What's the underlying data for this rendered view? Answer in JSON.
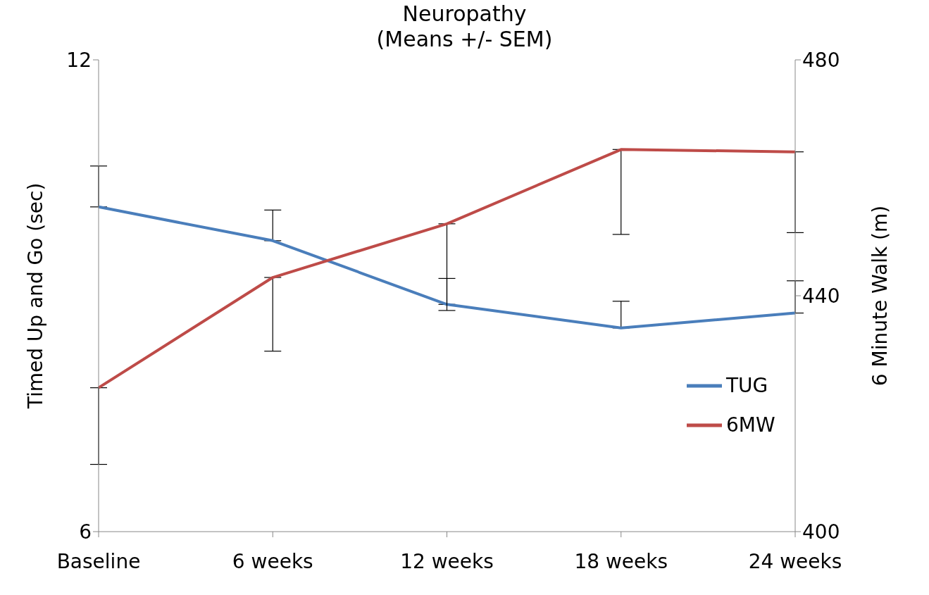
{
  "chart_data": {
    "type": "line",
    "title": "Neuropathy",
    "subtitle": "(Means +/- SEM)",
    "categories": [
      "Baseline",
      "6 weeks",
      "12 weeks",
      "18 weeks",
      "24 weeks"
    ],
    "series": [
      {
        "name": "TUG",
        "color": "#4a7ebb",
        "values": [
          10.13,
          9.7,
          8.89,
          8.59,
          8.78
        ],
        "errors": [
          [
            10.13,
            10.65
          ],
          [
            9.7,
            10.09
          ],
          [
            8.89,
            9.22
          ],
          [
            8.59,
            8.93
          ],
          [
            8.78,
            9.19
          ]
        ]
      },
      {
        "name": "6MW",
        "color": "#be4b48",
        "axis": "y2",
        "values": [
          424.4,
          443.1,
          452.2,
          464.8,
          464.4
        ],
        "errors": [
          [
            411.4,
            424.4
          ],
          [
            430.6,
            443.1
          ],
          [
            437.5,
            452.2
          ],
          [
            450.4,
            464.8
          ],
          [
            450.7,
            464.4
          ]
        ]
      }
    ],
    "ylabel": "Timed Up and Go (sec)",
    "y2label": "6 Minute Walk (m)",
    "ylim": [
      6,
      12
    ],
    "yticks": [
      6,
      12
    ],
    "y2lim": [
      400,
      480
    ],
    "y2ticks": [
      400,
      440,
      480
    ],
    "legend": "bottom right",
    "grid": false,
    "marker": "none",
    "line_style": "solid"
  }
}
